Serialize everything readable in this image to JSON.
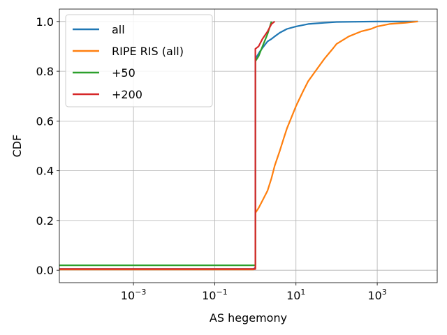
{
  "chart_data": {
    "type": "line",
    "title": "",
    "xlabel": "AS hegemony",
    "ylabel": "CDF",
    "xscale": "log",
    "xlim": [
      1.5e-05,
      30000
    ],
    "ylim": [
      -0.05,
      1.05
    ],
    "grid": true,
    "legend_position": "top-left",
    "x_ticks": [
      {
        "value": 0.001,
        "base": "10",
        "exp": "−3"
      },
      {
        "value": 0.1,
        "base": "10",
        "exp": "−1"
      },
      {
        "value": 10,
        "base": "10",
        "exp": "1"
      },
      {
        "value": 1000,
        "base": "10",
        "exp": "3"
      }
    ],
    "y_ticks": [
      {
        "value": 0.0,
        "label": "0.0"
      },
      {
        "value": 0.2,
        "label": "0.2"
      },
      {
        "value": 0.4,
        "label": "0.4"
      },
      {
        "value": 0.6,
        "label": "0.6"
      },
      {
        "value": 0.8,
        "label": "0.8"
      },
      {
        "value": 1.0,
        "label": "1.0"
      }
    ],
    "series": [
      {
        "name": "all",
        "color": "#1f77b4",
        "points": [
          [
            1.5e-05,
            0.005
          ],
          [
            0.9,
            0.005
          ],
          [
            1.0,
            0.01
          ],
          [
            1.0,
            0.85
          ],
          [
            1.3,
            0.88
          ],
          [
            1.6,
            0.9
          ],
          [
            2.0,
            0.92
          ],
          [
            2.5,
            0.93
          ],
          [
            3.0,
            0.94
          ],
          [
            4.0,
            0.955
          ],
          [
            6.0,
            0.97
          ],
          [
            10,
            0.98
          ],
          [
            20,
            0.99
          ],
          [
            50,
            0.995
          ],
          [
            100,
            0.998
          ],
          [
            300,
            0.999
          ],
          [
            1000,
            1.0
          ],
          [
            10000,
            1.0
          ]
        ]
      },
      {
        "name": "RIPE RIS (all)",
        "color": "#ff7f0e",
        "points": [
          [
            1.5e-05,
            0.003
          ],
          [
            0.9,
            0.003
          ],
          [
            1.0,
            0.005
          ],
          [
            1.0,
            0.23
          ],
          [
            1.2,
            0.25
          ],
          [
            1.5,
            0.28
          ],
          [
            2.0,
            0.32
          ],
          [
            2.5,
            0.37
          ],
          [
            3.0,
            0.42
          ],
          [
            4.0,
            0.48
          ],
          [
            5.0,
            0.53
          ],
          [
            6.0,
            0.57
          ],
          [
            8.0,
            0.62
          ],
          [
            10,
            0.66
          ],
          [
            15,
            0.72
          ],
          [
            20,
            0.76
          ],
          [
            30,
            0.8
          ],
          [
            50,
            0.85
          ],
          [
            80,
            0.89
          ],
          [
            100,
            0.91
          ],
          [
            200,
            0.94
          ],
          [
            400,
            0.96
          ],
          [
            700,
            0.97
          ],
          [
            1000,
            0.98
          ],
          [
            2000,
            0.99
          ],
          [
            5000,
            0.995
          ],
          [
            10000,
            1.0
          ]
        ]
      },
      {
        "name": "+50",
        "color": "#2ca02c",
        "points": [
          [
            1.5e-05,
            0.02
          ],
          [
            0.9,
            0.02
          ],
          [
            1.0,
            0.02
          ],
          [
            1.0,
            0.84
          ],
          [
            1.2,
            0.86
          ],
          [
            1.5,
            0.9
          ],
          [
            2.0,
            0.95
          ],
          [
            2.5,
            1.0
          ]
        ]
      },
      {
        "name": "+200",
        "color": "#d62728",
        "points": [
          [
            1.5e-05,
            0.005
          ],
          [
            0.9,
            0.005
          ],
          [
            1.0,
            0.005
          ],
          [
            1.0,
            0.89
          ],
          [
            1.2,
            0.9
          ],
          [
            1.5,
            0.93
          ],
          [
            2.0,
            0.96
          ],
          [
            2.5,
            0.99
          ],
          [
            3.0,
            1.0
          ]
        ]
      }
    ]
  }
}
